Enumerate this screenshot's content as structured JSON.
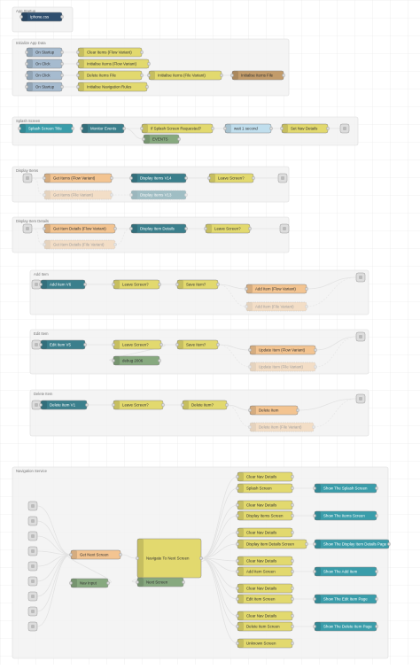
{
  "groups": [
    {
      "label": "App Startup",
      "nodes": [
        "Iphone.css"
      ]
    },
    {
      "label": "Initialize App Data",
      "nodes": [
        "On Startup",
        "On Click",
        "On Click",
        "On Startup",
        "Clear Items (Flow Variant)",
        "Initialise Items (Flow Variant)",
        "Delete Items File",
        "Initialise Navigation Rules",
        "Initialise Items (File Variant)",
        "Initialise Items File"
      ]
    },
    {
      "label": "Splash Screen",
      "nodes": [
        "Splash Screen Title",
        "Monitor Events",
        "If Splash Screen Requested?",
        "EVENTS",
        "wait 1 second",
        "Set Nav Details"
      ]
    },
    {
      "label": "Display Items",
      "nodes": [
        "Get Items (Flow Variant)",
        "Get Items (File Variant)",
        "Display Items V14",
        "Display Items V13",
        "Leave Screen?"
      ]
    },
    {
      "label": "Display Item Details",
      "nodes": [
        "Get Item Details (Flow Variant)",
        "Get Item Details (File Variant)",
        "Display Item Details",
        "Leave Screen?"
      ]
    },
    {
      "label": "Add Item",
      "nodes": [
        "Add Item V6",
        "Leave Screen?",
        "Save Item?",
        "Add Item (Flow Variant)",
        "Add Item (File Variant)"
      ]
    },
    {
      "label": "Edit Item",
      "nodes": [
        "Edit Item V5",
        "Leave Screen?",
        "debug 2006",
        "Save Item?",
        "Update Item (Flow Variant)",
        "Update Item (File Variant)"
      ]
    },
    {
      "label": "Delete Item",
      "nodes": [
        "Delete Item V1",
        "Leave Screen?",
        "Delete Item?",
        "Delete Item",
        "Delete Item (File Variant)"
      ]
    },
    {
      "label": "Navigation Service",
      "nodes": [
        "Get Next Screen",
        "Nav Input",
        "Navigate To Next Screen",
        "Next Screen",
        "Clear Nav Details",
        "Splash Screen",
        "Clear Nav Details",
        "Display Items Screen",
        "Clear Nav Details",
        "Display Item Details Screen",
        "Clear Nav Details",
        "Add Item Screen",
        "Clear Nav Details",
        "Edit Item Screen",
        "Clear Nav Details",
        "Delete Item Screen",
        "Unknown Screen",
        "Show The Splash Screen",
        "Show The Items Screen",
        "Show The Display Item Details Page",
        "Show The Add Item",
        "Show The Edit Item Page",
        "Show The Delete Item Page"
      ]
    }
  ]
}
